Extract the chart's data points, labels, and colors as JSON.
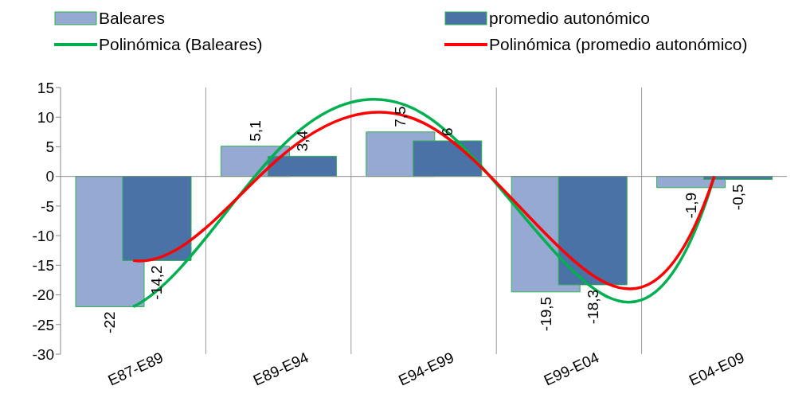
{
  "chart_data": {
    "type": "bar",
    "categories": [
      "E87-E89",
      "E89-E94",
      "E94-E99",
      "E99-E04",
      "E04-E09"
    ],
    "series": [
      {
        "name": "Baleares",
        "color": "#95a9d2",
        "values": [
          -22,
          5.1,
          7.5,
          -19.5,
          -1.9
        ],
        "value_labels": [
          "-22",
          "5,1",
          "7,5",
          "-19,5",
          "-1,9"
        ]
      },
      {
        "name": "promedio autonómico",
        "color": "#4a72a6",
        "values": [
          -14.2,
          3.4,
          6,
          -18.3,
          -0.5
        ],
        "value_labels": [
          "-14,2",
          "3,4",
          "6",
          "-18,3",
          "-0,5"
        ]
      },
      {
        "name": "Polinómica (Baleares)",
        "type": "line",
        "color": "#00b050",
        "values": [
          -22,
          4.5,
          10.5,
          -15.3,
          0
        ]
      },
      {
        "name": "Polinómica (promedio autonómico)",
        "type": "line",
        "color": "#ff0000",
        "values": [
          -14.2,
          3,
          9,
          -13.5,
          0
        ]
      }
    ],
    "ylim": [
      -30,
      15
    ],
    "yticks": [
      -30,
      -25,
      -20,
      -15,
      -10,
      -5,
      0,
      5,
      10,
      15
    ],
    "grid": "x",
    "legend": "top",
    "marker": "none"
  }
}
